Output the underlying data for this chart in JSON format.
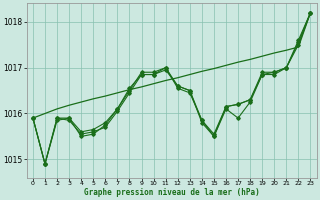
{
  "xlabel": "Graphe pression niveau de la mer (hPa)",
  "background_color": "#cce8e0",
  "plot_bg_color": "#cce8e0",
  "grid_color": "#88c0b0",
  "line_color": "#1a6e1a",
  "ylim": [
    1014.6,
    1018.4
  ],
  "xlim": [
    -0.5,
    23.5
  ],
  "yticks": [
    1015,
    1016,
    1017,
    1018
  ],
  "xticks": [
    0,
    1,
    2,
    3,
    4,
    5,
    6,
    7,
    8,
    9,
    10,
    11,
    12,
    13,
    14,
    15,
    16,
    17,
    18,
    19,
    20,
    21,
    22,
    23
  ],
  "series_with_markers": [
    [
      1015.9,
      1014.9,
      1015.9,
      1015.85,
      1015.55,
      1015.6,
      1015.7,
      1016.05,
      1016.45,
      1016.85,
      1016.85,
      1017.0,
      1016.55,
      1016.45,
      1015.85,
      1015.55,
      1016.15,
      1016.2,
      1016.3,
      1016.85,
      1016.9,
      1017.0,
      1017.5,
      1018.2
    ],
    [
      1015.9,
      1014.9,
      1015.85,
      1015.9,
      1015.5,
      1015.55,
      1015.75,
      1016.1,
      1016.5,
      1016.9,
      1016.9,
      1017.0,
      1016.6,
      1016.5,
      1015.8,
      1015.5,
      1016.1,
      1015.9,
      1016.25,
      1016.85,
      1016.85,
      1017.0,
      1017.55,
      1018.2
    ],
    [
      1015.9,
      1014.9,
      1015.9,
      1015.9,
      1015.6,
      1015.65,
      1015.8,
      1016.1,
      1016.55,
      1016.85,
      1016.85,
      1016.95,
      1016.6,
      1016.5,
      1015.85,
      1015.5,
      1016.15,
      1016.2,
      1016.3,
      1016.9,
      1016.9,
      1017.0,
      1017.6,
      1018.2
    ]
  ],
  "trend_line": [
    1015.9,
    1016.0,
    1016.1,
    1016.18,
    1016.25,
    1016.32,
    1016.38,
    1016.45,
    1016.52,
    1016.58,
    1016.65,
    1016.72,
    1016.78,
    1016.85,
    1016.92,
    1016.98,
    1017.05,
    1017.12,
    1017.18,
    1017.25,
    1017.32,
    1017.38,
    1017.45,
    1018.2
  ]
}
